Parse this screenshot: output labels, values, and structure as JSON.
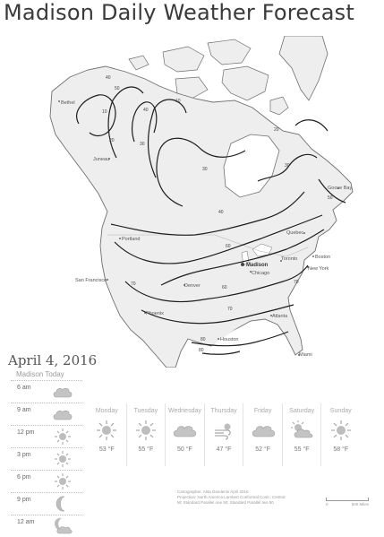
{
  "title": "Madison Daily Weather Forecast",
  "map": {
    "cities": [
      {
        "name": "Bethel",
        "main": false
      },
      {
        "name": "Juneau",
        "main": false
      },
      {
        "name": "Goose Bay",
        "main": false
      },
      {
        "name": "Portland",
        "main": false
      },
      {
        "name": "Quebec",
        "main": false
      },
      {
        "name": "Boston",
        "main": false
      },
      {
        "name": "Madison",
        "main": true
      },
      {
        "name": "Toronto",
        "main": false
      },
      {
        "name": "New York",
        "main": false
      },
      {
        "name": "Chicago",
        "main": false
      },
      {
        "name": "San Francisco",
        "main": false
      },
      {
        "name": "Denver",
        "main": false
      },
      {
        "name": "Phoenix",
        "main": false
      },
      {
        "name": "Atlanta",
        "main": false
      },
      {
        "name": "Houston",
        "main": false
      },
      {
        "name": "Miami",
        "main": false
      }
    ],
    "isotherm_labels": [
      "40",
      "10",
      "20",
      "50",
      "30",
      "40",
      "10",
      "20",
      "30",
      "30",
      "50",
      "40",
      "60",
      "70",
      "60",
      "70",
      "70",
      "80",
      "80"
    ],
    "colors": {
      "land": "#eeeeee",
      "water": "#ffffff",
      "coast": "#6f6f6f",
      "isotherm": "#1e1e1e",
      "border": "#b5b5b5"
    }
  },
  "date": "April 4, 2016",
  "today": {
    "heading": "Madison Today",
    "hours": [
      {
        "time": "6 am",
        "icon": "cloud-icon"
      },
      {
        "time": "9 am",
        "icon": "cloud-icon"
      },
      {
        "time": "12 pm",
        "icon": "sun-icon"
      },
      {
        "time": "3 pm",
        "icon": "sun-icon"
      },
      {
        "time": "6 pm",
        "icon": "sun-icon"
      },
      {
        "time": "9 pm",
        "icon": "moon-icon"
      },
      {
        "time": "12 am",
        "icon": "moon-cloud-icon"
      }
    ]
  },
  "week": [
    {
      "day": "Monday",
      "temp": "53 °F",
      "icon": "sun-icon"
    },
    {
      "day": "Tuesday",
      "temp": "55 °F",
      "icon": "sun-icon"
    },
    {
      "day": "Wednesday",
      "temp": "50 °F",
      "icon": "cloud-icon"
    },
    {
      "day": "Thursday",
      "temp": "47 °F",
      "icon": "wind-icon"
    },
    {
      "day": "Friday",
      "temp": "52 °F",
      "icon": "cloud-icon"
    },
    {
      "day": "Saturday",
      "temp": "55 °F",
      "icon": "sun-cloud-icon"
    },
    {
      "day": "Sunday",
      "temp": "58 °F",
      "icon": "sun-icon"
    }
  ],
  "credit": {
    "line1": "Cartographer: Akta Dandenni      April 2016",
    "line2": "Projection: North America Lambert Conformal Conic; Central",
    "line3": "W; Standard Parallel one 50; Standard Parallel two 50"
  },
  "scale": {
    "left": "0",
    "right": "500 Miles"
  }
}
